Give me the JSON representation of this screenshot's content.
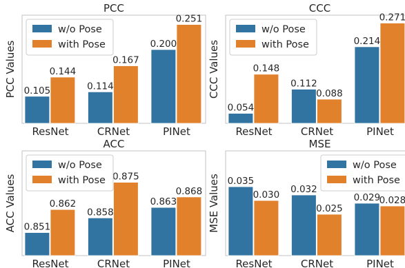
{
  "colors": {
    "wo_pose": "#3274a1",
    "with_pose": "#e1812c",
    "frame": "#cccccc",
    "text": "#262626"
  },
  "chart_data": [
    {
      "type": "bar",
      "title": "PCC",
      "ylabel": "PCC Values",
      "xlabel": "",
      "categories": [
        "ResNet",
        "CRNet",
        "PINet"
      ],
      "series": [
        {
          "name": "w/o Pose",
          "values": [
            0.105,
            0.114,
            0.2
          ],
          "labels": [
            "0.105",
            "0.114",
            "0.200"
          ]
        },
        {
          "name": "with Pose",
          "values": [
            0.144,
            0.167,
            0.251
          ],
          "labels": [
            "0.144",
            "0.167",
            "0.251"
          ]
        }
      ],
      "ylim": [
        0.05,
        0.27
      ],
      "grid": false,
      "legend": "top-left"
    },
    {
      "type": "bar",
      "title": "CCC",
      "ylabel": "CCC Values",
      "xlabel": "",
      "categories": [
        "ResNet",
        "CRNet",
        "PINet"
      ],
      "series": [
        {
          "name": "w/o Pose",
          "values": [
            0.054,
            0.112,
            0.214
          ],
          "labels": [
            "0.054",
            "0.112",
            "0.214"
          ]
        },
        {
          "name": "with Pose",
          "values": [
            0.148,
            0.088,
            0.271
          ],
          "labels": [
            "0.148",
            "0.088",
            "0.271"
          ]
        }
      ],
      "ylim": [
        0.03,
        0.29
      ],
      "grid": false,
      "legend": "top-left"
    },
    {
      "type": "bar",
      "title": "ACC",
      "ylabel": "ACC Values",
      "xlabel": "",
      "categories": [
        "ResNet",
        "CRNet",
        "PINet"
      ],
      "series": [
        {
          "name": "w/o Pose",
          "values": [
            0.851,
            0.858,
            0.863
          ],
          "labels": [
            "0.851",
            "0.858",
            "0.863"
          ]
        },
        {
          "name": "with Pose",
          "values": [
            0.862,
            0.875,
            0.868
          ],
          "labels": [
            "0.862",
            "0.875",
            "0.868"
          ]
        }
      ],
      "ylim": [
        0.84,
        0.89
      ],
      "grid": false,
      "legend": "top-left"
    },
    {
      "type": "bar",
      "title": "MSE",
      "ylabel": "MSE Values",
      "xlabel": "",
      "categories": [
        "ResNet",
        "CRNet",
        "PINet"
      ],
      "series": [
        {
          "name": "w/o Pose",
          "values": [
            0.035,
            0.032,
            0.029
          ],
          "labels": [
            "0.035",
            "0.032",
            "0.029"
          ]
        },
        {
          "name": "with Pose",
          "values": [
            0.03,
            0.025,
            0.028
          ],
          "labels": [
            "0.030",
            "0.025",
            "0.028"
          ]
        }
      ],
      "ylim": [
        0.01,
        0.048
      ],
      "grid": false,
      "legend": "top-right"
    }
  ]
}
